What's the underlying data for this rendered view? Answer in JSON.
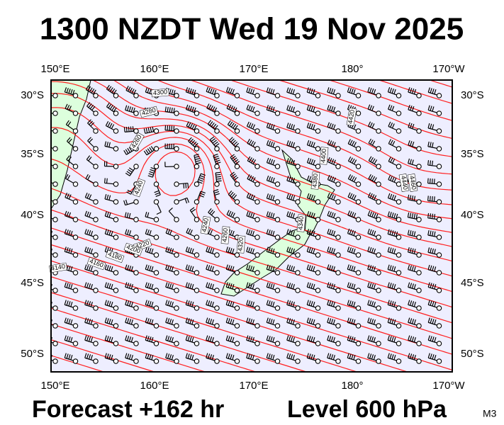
{
  "header": {
    "title": "1300 NZDT Wed 19 Nov 2025"
  },
  "map": {
    "lon_labels_top": [
      "150°E",
      "160°E",
      "170°E",
      "180°",
      "170°W"
    ],
    "lon_labels_bottom": [
      "150°E",
      "160°E",
      "170°E",
      "180°",
      "170°W"
    ],
    "lat_labels_left": [
      "30°S",
      "35°S",
      "40°S",
      "45°S",
      "50°S"
    ],
    "lat_labels_right": [
      "30°S",
      "35°S",
      "40°S",
      "45°S",
      "50°S"
    ],
    "contour_labels": [
      "4300",
      "4280",
      "4260",
      "4240",
      "4220",
      "4200",
      "4180",
      "4160",
      "4140",
      "4420",
      "4400",
      "4380",
      "4340",
      "4320",
      "4440",
      "4460",
      "4240",
      "4260"
    ]
  },
  "footer": {
    "forecast": "Forecast +162 hr",
    "level": "Level 600 hPa",
    "model": "M3"
  }
}
